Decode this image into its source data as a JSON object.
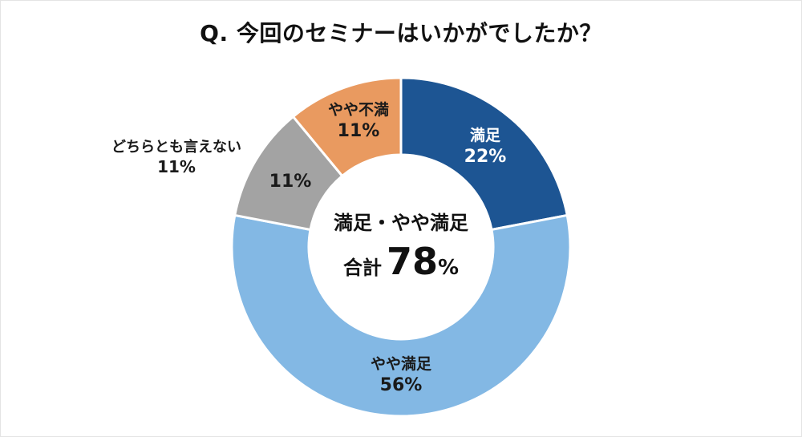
{
  "title": "Q. 今回のセミナーはいかがでしたか？",
  "center": {
    "line1": "満足・やや満足",
    "sum_label": "合計",
    "sum_value": "78",
    "sum_unit": "%"
  },
  "labels": {
    "satisfied": {
      "name": "満足",
      "pct": "22%"
    },
    "somewhat_dissatisfied": {
      "name": "やや不満",
      "pct": "11%"
    },
    "neutral_inner": {
      "pct": "11%"
    },
    "neutral_outer": {
      "name": "どちらとも言えない",
      "pct": "11%"
    },
    "somewhat_satisfied": {
      "name": "やや満足",
      "pct": "56%"
    }
  },
  "colors": {
    "satisfied": "#1d5593",
    "somewhat_satisfied": "#83b8e4",
    "neutral": "#a3a3a3",
    "somewhat_dissatisfied": "#e99a60"
  },
  "chart_data": {
    "type": "pie",
    "subtype": "donut",
    "title": "Q. 今回のセミナーはいかがでしたか？",
    "categories": [
      "満足",
      "やや満足",
      "どちらとも言えない",
      "やや不満"
    ],
    "values": [
      22,
      56,
      11,
      11
    ],
    "unit": "%",
    "colors": [
      "#1d5593",
      "#83b8e4",
      "#a3a3a3",
      "#e99a60"
    ],
    "start_angle": "12 o'clock, clockwise",
    "center_annotation": "満足・やや満足 合計 78%",
    "legend": "none (direct labels)"
  }
}
